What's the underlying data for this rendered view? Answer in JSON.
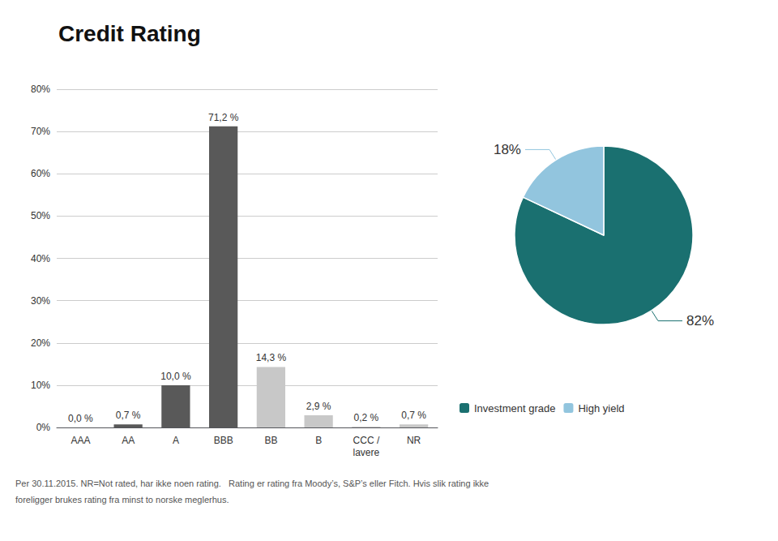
{
  "chart_data": [
    {
      "type": "bar",
      "title": "Credit Rating",
      "categories": [
        "AAA",
        "AA",
        "A",
        "BBB",
        "BB",
        "B",
        "CCC /\nlavere",
        "NR"
      ],
      "values": [
        0.0,
        0.7,
        10.0,
        71.2,
        14.3,
        2.9,
        0.2,
        0.7
      ],
      "value_labels": [
        "0,0 %",
        "0,7 %",
        "10,0 %",
        "71,2 %",
        "14,3 %",
        "2,9 %",
        "0,2 %",
        "0,7 %"
      ],
      "data_labels": true,
      "colors": [
        "#595959",
        "#595959",
        "#595959",
        "#595959",
        "#c8c8c8",
        "#c8c8c8",
        "#c8c8c8",
        "#c8c8c8"
      ],
      "ylim": [
        0,
        80
      ],
      "yticks": [
        {
          "value": 0,
          "label": "0%"
        },
        {
          "value": 10,
          "label": "10%"
        },
        {
          "value": 20,
          "label": "20%"
        },
        {
          "value": 30,
          "label": "30%"
        },
        {
          "value": 40,
          "label": "40%"
        },
        {
          "value": 50,
          "label": "50%"
        },
        {
          "value": 60,
          "label": "60%"
        },
        {
          "value": 70,
          "label": "70%"
        },
        {
          "value": 80,
          "label": "80%"
        }
      ],
      "grid": true,
      "annotations": [
        "Per 30.11.2015. NR=Not rated, har ikke noen rating.   Rating er rating fra Moody’s, S&P’s eller Fitch. Hvis slik rating ikke",
        "foreligger brukes rating fra minst to norske meglerhus."
      ]
    },
    {
      "type": "pie",
      "categories": [
        "Investment grade",
        "High yield"
      ],
      "values": [
        82,
        18
      ],
      "value_labels": [
        "82%",
        "18%"
      ],
      "data_labels": true,
      "colors": [
        "#1a7070",
        "#92c5de"
      ],
      "legend": "bottom"
    }
  ]
}
